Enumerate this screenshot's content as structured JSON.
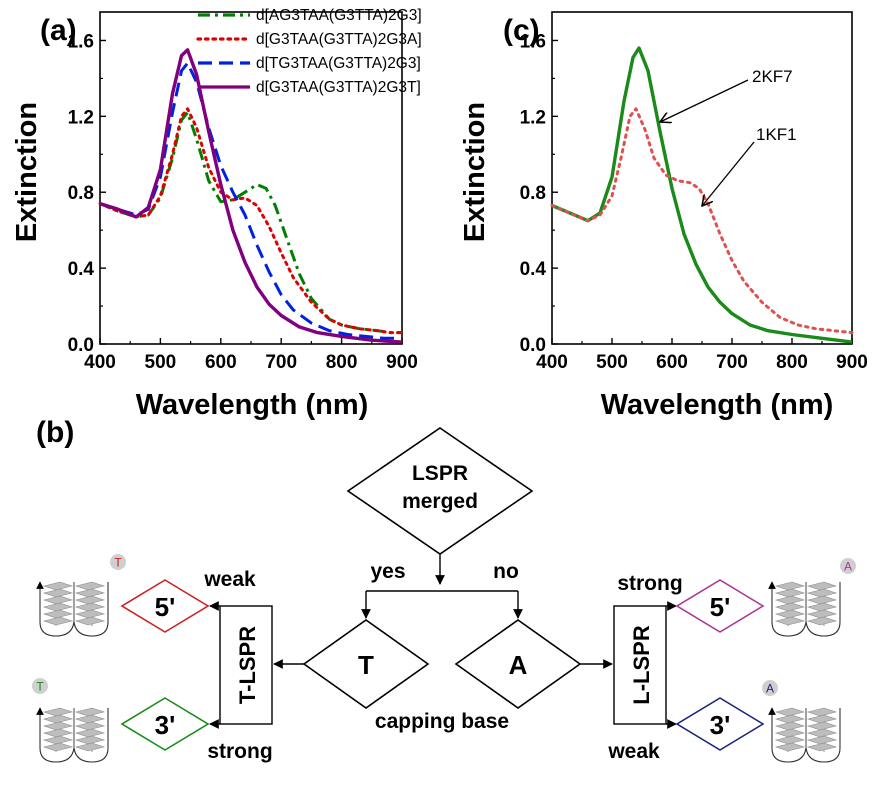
{
  "chart_data": [
    {
      "panel_label": "(a)",
      "type": "line",
      "xlabel": "Wavelength (nm)",
      "ylabel": "Extinction",
      "xlim": [
        400,
        900
      ],
      "ylim": [
        0,
        1.75
      ],
      "xticks": [
        "400",
        "500",
        "600",
        "700",
        "800",
        "900"
      ],
      "yticks": [
        "0.0",
        "0.4",
        "0.8",
        "1.2",
        "1.6"
      ],
      "legend_position": "top-right",
      "series": [
        {
          "name": "d[AG3TAA(G3TTA)2G3]",
          "color": "#008000",
          "style": "dash-dot",
          "points": [
            [
              400,
              0.74
            ],
            [
              430,
              0.7
            ],
            [
              460,
              0.67
            ],
            [
              480,
              0.68
            ],
            [
              500,
              0.77
            ],
            [
              520,
              0.98
            ],
            [
              535,
              1.18
            ],
            [
              545,
              1.22
            ],
            [
              560,
              1.08
            ],
            [
              580,
              0.86
            ],
            [
              600,
              0.75
            ],
            [
              620,
              0.76
            ],
            [
              640,
              0.8
            ],
            [
              660,
              0.84
            ],
            [
              675,
              0.82
            ],
            [
              690,
              0.73
            ],
            [
              710,
              0.55
            ],
            [
              730,
              0.37
            ],
            [
              750,
              0.24
            ],
            [
              780,
              0.13
            ],
            [
              800,
              0.1
            ],
            [
              830,
              0.08
            ],
            [
              860,
              0.07
            ],
            [
              880,
              0.06
            ],
            [
              900,
              0.06
            ]
          ]
        },
        {
          "name": "d[G3TAA(G3TTA)2G3A]",
          "color": "#e00000",
          "style": "dot",
          "points": [
            [
              400,
              0.74
            ],
            [
              430,
              0.7
            ],
            [
              460,
              0.67
            ],
            [
              480,
              0.68
            ],
            [
              500,
              0.78
            ],
            [
              520,
              1.0
            ],
            [
              535,
              1.2
            ],
            [
              545,
              1.24
            ],
            [
              560,
              1.14
            ],
            [
              580,
              0.93
            ],
            [
              600,
              0.8
            ],
            [
              620,
              0.76
            ],
            [
              640,
              0.77
            ],
            [
              660,
              0.73
            ],
            [
              680,
              0.62
            ],
            [
              700,
              0.48
            ],
            [
              720,
              0.35
            ],
            [
              750,
              0.22
            ],
            [
              780,
              0.13
            ],
            [
              800,
              0.1
            ],
            [
              830,
              0.08
            ],
            [
              860,
              0.07
            ],
            [
              880,
              0.06
            ],
            [
              900,
              0.06
            ]
          ]
        },
        {
          "name": "d[TG3TAA(G3TTA)2G3]",
          "color": "#0022e0",
          "style": "dash",
          "points": [
            [
              400,
              0.74
            ],
            [
              430,
              0.71
            ],
            [
              460,
              0.68
            ],
            [
              480,
              0.71
            ],
            [
              500,
              0.88
            ],
            [
              520,
              1.22
            ],
            [
              535,
              1.44
            ],
            [
              545,
              1.48
            ],
            [
              560,
              1.38
            ],
            [
              580,
              1.14
            ],
            [
              600,
              0.94
            ],
            [
              620,
              0.8
            ],
            [
              640,
              0.68
            ],
            [
              660,
              0.52
            ],
            [
              680,
              0.38
            ],
            [
              700,
              0.26
            ],
            [
              720,
              0.18
            ],
            [
              750,
              0.11
            ],
            [
              780,
              0.07
            ],
            [
              810,
              0.05
            ],
            [
              840,
              0.04
            ],
            [
              870,
              0.03
            ],
            [
              900,
              0.03
            ]
          ]
        },
        {
          "name": "d[G3TAA(G3TTA)2G3T]",
          "color": "#800080",
          "style": "solid",
          "points": [
            [
              400,
              0.74
            ],
            [
              430,
              0.71
            ],
            [
              460,
              0.67
            ],
            [
              480,
              0.72
            ],
            [
              500,
              0.92
            ],
            [
              520,
              1.32
            ],
            [
              535,
              1.52
            ],
            [
              545,
              1.55
            ],
            [
              560,
              1.42
            ],
            [
              580,
              1.12
            ],
            [
              600,
              0.84
            ],
            [
              620,
              0.6
            ],
            [
              640,
              0.43
            ],
            [
              660,
              0.3
            ],
            [
              680,
              0.21
            ],
            [
              700,
              0.15
            ],
            [
              730,
              0.09
            ],
            [
              760,
              0.06
            ],
            [
              800,
              0.04
            ],
            [
              850,
              0.02
            ],
            [
              900,
              0.01
            ]
          ]
        }
      ]
    },
    {
      "panel_label": "(c)",
      "type": "line",
      "xlabel": "Wavelength (nm)",
      "ylabel": "Extinction",
      "xlim": [
        400,
        900
      ],
      "ylim": [
        0,
        1.75
      ],
      "xticks": [
        "400",
        "500",
        "600",
        "700",
        "800",
        "900"
      ],
      "yticks": [
        "0.0",
        "0.4",
        "0.8",
        "1.2",
        "1.6"
      ],
      "series": [
        {
          "name": "2KF7",
          "color": "#1a8a1a",
          "style": "solid",
          "points": [
            [
              400,
              0.73
            ],
            [
              430,
              0.69
            ],
            [
              460,
              0.65
            ],
            [
              480,
              0.69
            ],
            [
              500,
              0.88
            ],
            [
              520,
              1.28
            ],
            [
              535,
              1.51
            ],
            [
              545,
              1.56
            ],
            [
              560,
              1.44
            ],
            [
              580,
              1.12
            ],
            [
              600,
              0.82
            ],
            [
              620,
              0.58
            ],
            [
              640,
              0.42
            ],
            [
              660,
              0.3
            ],
            [
              680,
              0.22
            ],
            [
              700,
              0.16
            ],
            [
              730,
              0.1
            ],
            [
              760,
              0.07
            ],
            [
              800,
              0.05
            ],
            [
              850,
              0.03
            ],
            [
              900,
              0.01
            ]
          ]
        },
        {
          "name": "1KF1",
          "color": "#e05050",
          "style": "dot",
          "points": [
            [
              400,
              0.73
            ],
            [
              430,
              0.69
            ],
            [
              460,
              0.65
            ],
            [
              480,
              0.68
            ],
            [
              500,
              0.78
            ],
            [
              515,
              0.98
            ],
            [
              530,
              1.2
            ],
            [
              540,
              1.24
            ],
            [
              555,
              1.13
            ],
            [
              570,
              0.98
            ],
            [
              590,
              0.89
            ],
            [
              610,
              0.86
            ],
            [
              630,
              0.85
            ],
            [
              645,
              0.82
            ],
            [
              660,
              0.74
            ],
            [
              680,
              0.58
            ],
            [
              700,
              0.44
            ],
            [
              720,
              0.33
            ],
            [
              750,
              0.22
            ],
            [
              780,
              0.14
            ],
            [
              810,
              0.1
            ],
            [
              840,
              0.08
            ],
            [
              870,
              0.07
            ],
            [
              900,
              0.06
            ]
          ]
        }
      ],
      "annotations": [
        "2KF7",
        "1KF1"
      ]
    }
  ],
  "flowchart": {
    "panel_label": "(b)",
    "decision_top": [
      "LSPR",
      "merged"
    ],
    "branch_yes": "yes",
    "branch_no": "no",
    "node_t": "T",
    "node_a": "A",
    "caption": "capping base",
    "left_side": "T-LSPR",
    "right_side": "L-LSPR",
    "left_top_strength": "weak",
    "left_bottom_strength": "strong",
    "right_top_strength": "strong",
    "right_bottom_strength": "weak",
    "five_prime": "5'",
    "three_prime": "3'",
    "badge_t": "T",
    "badge_a": "A",
    "colors": {
      "left_5": "#cc2222",
      "left_3": "#1a8a1a",
      "right_5": "#aa3399",
      "right_3": "#1a237e"
    }
  }
}
